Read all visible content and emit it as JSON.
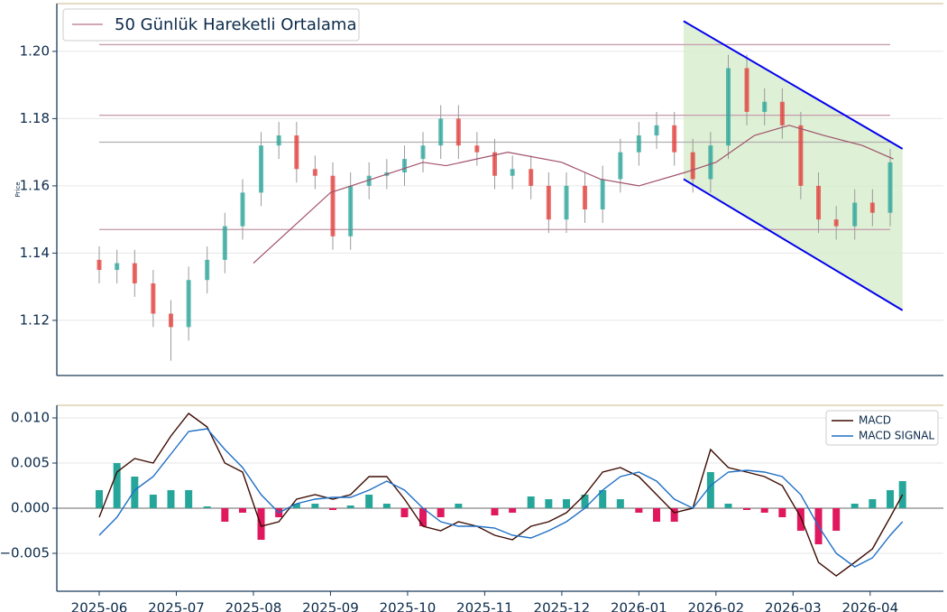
{
  "chart_data": [
    {
      "type": "candlestick",
      "ylabel": "Price",
      "x": [
        0,
        0.23,
        0.46,
        0.7,
        0.93,
        1.16,
        1.4,
        1.63,
        1.86,
        2.1,
        2.33,
        2.56,
        2.8,
        3.03,
        3.26,
        3.5,
        3.73,
        3.96,
        4.2,
        4.43,
        4.66,
        4.9,
        5.13,
        5.36,
        5.6,
        5.83,
        6.06,
        6.3,
        6.53,
        6.76,
        7.0,
        7.23,
        7.46,
        7.7,
        7.93,
        8.16,
        8.4,
        8.63,
        8.86,
        9.1,
        9.33,
        9.56,
        9.8,
        10.03,
        10.26
      ],
      "open": [
        1.138,
        1.135,
        1.137,
        1.131,
        1.122,
        1.118,
        1.132,
        1.138,
        1.148,
        1.158,
        1.172,
        1.175,
        1.165,
        1.163,
        1.145,
        1.16,
        1.163,
        1.164,
        1.168,
        1.172,
        1.18,
        1.172,
        1.17,
        1.163,
        1.165,
        1.16,
        1.15,
        1.16,
        1.153,
        1.162,
        1.17,
        1.175,
        1.178,
        1.17,
        1.162,
        1.172,
        1.195,
        1.182,
        1.185,
        1.178,
        1.16,
        1.15,
        1.148,
        1.155,
        1.152
      ],
      "high": [
        1.142,
        1.141,
        1.141,
        1.135,
        1.126,
        1.136,
        1.142,
        1.152,
        1.162,
        1.176,
        1.179,
        1.179,
        1.169,
        1.167,
        1.164,
        1.167,
        1.168,
        1.172,
        1.176,
        1.184,
        1.184,
        1.176,
        1.174,
        1.169,
        1.169,
        1.164,
        1.164,
        1.164,
        1.166,
        1.174,
        1.179,
        1.182,
        1.182,
        1.174,
        1.176,
        1.199,
        1.199,
        1.189,
        1.189,
        1.182,
        1.164,
        1.154,
        1.159,
        1.159,
        1.171
      ],
      "low": [
        1.131,
        1.131,
        1.127,
        1.118,
        1.108,
        1.114,
        1.128,
        1.134,
        1.144,
        1.154,
        1.168,
        1.161,
        1.159,
        1.141,
        1.141,
        1.156,
        1.159,
        1.16,
        1.164,
        1.168,
        1.168,
        1.166,
        1.159,
        1.159,
        1.156,
        1.146,
        1.146,
        1.149,
        1.149,
        1.158,
        1.166,
        1.171,
        1.166,
        1.158,
        1.158,
        1.168,
        1.178,
        1.178,
        1.174,
        1.156,
        1.146,
        1.144,
        1.144,
        1.148,
        1.148
      ],
      "close": [
        1.135,
        1.137,
        1.131,
        1.122,
        1.118,
        1.132,
        1.138,
        1.148,
        1.158,
        1.172,
        1.175,
        1.165,
        1.163,
        1.145,
        1.16,
        1.163,
        1.164,
        1.168,
        1.172,
        1.18,
        1.172,
        1.17,
        1.163,
        1.165,
        1.16,
        1.15,
        1.16,
        1.153,
        1.162,
        1.17,
        1.175,
        1.178,
        1.17,
        1.162,
        1.172,
        1.195,
        1.182,
        1.185,
        1.178,
        1.16,
        1.15,
        1.148,
        1.155,
        1.152,
        1.167
      ],
      "up_color": "#26a69a",
      "down_color": "#e53935",
      "wick_color": "#9a9a9a",
      "moving_average": {
        "name": "50 Günlük Hareketli Ortalama",
        "color": "#a0506a",
        "x": [
          2.0,
          3.0,
          4.2,
          4.5,
          5.3,
          6.0,
          6.5,
          7.0,
          7.6,
          8.0,
          8.5,
          8.95,
          9.4,
          9.9,
          10.3
        ],
        "values": [
          1.137,
          1.158,
          1.167,
          1.166,
          1.17,
          1.167,
          1.162,
          1.16,
          1.164,
          1.167,
          1.175,
          1.178,
          1.175,
          1.172,
          1.168
        ]
      },
      "levels": [
        {
          "value": 1.202,
          "color": "#c9a0b0"
        },
        {
          "value": 1.181,
          "color": "#c9a0b0"
        },
        {
          "value": 1.173,
          "color": "#b0b0b0"
        },
        {
          "value": 1.147,
          "color": "#c9a0b0"
        }
      ],
      "channel": {
        "x": [
          7.58,
          10.42
        ],
        "upper": [
          1.209,
          1.171
        ],
        "lower": [
          1.162,
          1.123
        ],
        "color": "#0000ee",
        "fill": "#d6eccb"
      },
      "xlim": [
        -0.55,
        10.95
      ],
      "ylim": [
        1.1036,
        1.2142
      ],
      "yticks": [
        1.12,
        1.14,
        1.16,
        1.18,
        {
          "value": 1.2,
          "label": "1.20"
        }
      ],
      "grid": true
    },
    {
      "type": "macd",
      "x": [
        0,
        0.23,
        0.46,
        0.7,
        0.93,
        1.16,
        1.4,
        1.63,
        1.86,
        2.1,
        2.33,
        2.56,
        2.8,
        3.03,
        3.26,
        3.5,
        3.73,
        3.96,
        4.2,
        4.43,
        4.66,
        4.9,
        5.13,
        5.36,
        5.6,
        5.83,
        6.06,
        6.3,
        6.53,
        6.76,
        7.0,
        7.23,
        7.46,
        7.7,
        7.93,
        8.16,
        8.4,
        8.63,
        8.86,
        9.1,
        9.33,
        9.56,
        9.8,
        10.03,
        10.26,
        10.42
      ],
      "series": [
        {
          "name": "MACD",
          "color": "#3d0c02",
          "values": [
            -0.001,
            0.004,
            0.0055,
            0.005,
            0.008,
            0.0105,
            0.009,
            0.005,
            0.004,
            -0.002,
            -0.0015,
            0.001,
            0.0015,
            0.001,
            0.0015,
            0.0035,
            0.0035,
            0.001,
            -0.002,
            -0.0025,
            -0.0015,
            -0.002,
            -0.003,
            -0.0035,
            -0.002,
            -0.0015,
            -0.0005,
            0.0015,
            0.004,
            0.0045,
            0.0035,
            0.0015,
            -0.0005,
            0.0,
            0.0065,
            0.0045,
            0.004,
            0.0035,
            0.0025,
            -0.001,
            -0.006,
            -0.0075,
            -0.006,
            -0.0045,
            -0.001,
            0.0015
          ]
        },
        {
          "name": "MACD SIGNAL",
          "color": "#1f6fc5",
          "values": [
            -0.003,
            -0.001,
            0.002,
            0.0035,
            0.006,
            0.0085,
            0.0088,
            0.0065,
            0.0045,
            0.0015,
            -0.0005,
            0.0005,
            0.001,
            0.0012,
            0.0012,
            0.002,
            0.003,
            0.002,
            0.0,
            -0.0015,
            -0.002,
            -0.002,
            -0.0022,
            -0.003,
            -0.0033,
            -0.0025,
            -0.0015,
            0.0,
            0.002,
            0.0035,
            0.004,
            0.003,
            0.001,
            0.0,
            0.0025,
            0.004,
            0.0042,
            0.004,
            0.0035,
            0.0015,
            -0.002,
            -0.005,
            -0.0065,
            -0.0055,
            -0.003,
            -0.0015
          ]
        }
      ],
      "histogram": {
        "up_color": "#26a69a",
        "down_color": "#e0185e",
        "values": [
          0.002,
          0.005,
          0.0035,
          0.0015,
          0.002,
          0.002,
          0.0002,
          -0.0015,
          -0.0005,
          -0.0035,
          -0.001,
          0.0005,
          0.0005,
          -0.0002,
          0.0003,
          0.0015,
          0.0005,
          -0.001,
          -0.002,
          -0.001,
          0.0005,
          0,
          -0.0008,
          -0.0005,
          0.0013,
          0.001,
          0.001,
          0.0015,
          0.002,
          0.001,
          -0.0005,
          -0.0015,
          -0.0015,
          0,
          0.004,
          0.0005,
          -0.0002,
          -0.0005,
          -0.001,
          -0.0025,
          -0.004,
          -0.0025,
          0.0005,
          0.001,
          0.002,
          0.003
        ]
      },
      "xlim": [
        -0.55,
        10.95
      ],
      "ylim": [
        -0.0092,
        0.0114
      ],
      "yticks": [
        {
          "value": -0.005,
          "label": "−0.005"
        },
        {
          "value": 0,
          "label": "0.000"
        },
        {
          "value": 0.005,
          "label": "0.005"
        },
        {
          "value": 0.01,
          "label": "0.010"
        }
      ],
      "xticks": [
        {
          "value": 0,
          "label": "2025-06"
        },
        {
          "value": 1,
          "label": "2025-07"
        },
        {
          "value": 2,
          "label": "2025-08"
        },
        {
          "value": 3,
          "label": "2025-09"
        },
        {
          "value": 4,
          "label": "2025-10"
        },
        {
          "value": 5,
          "label": "2025-11"
        },
        {
          "value": 6,
          "label": "2025-12"
        },
        {
          "value": 7,
          "label": "2026-01"
        },
        {
          "value": 8,
          "label": "2026-02"
        },
        {
          "value": 9,
          "label": "2026-03"
        },
        {
          "value": 10,
          "label": "2026-04"
        }
      ],
      "legend": "upper right",
      "grid": true
    }
  ]
}
